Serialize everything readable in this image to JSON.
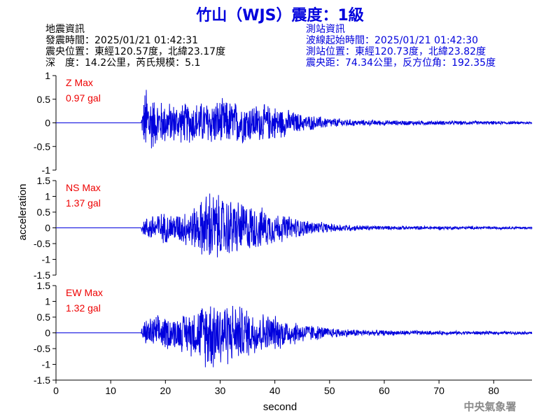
{
  "title": "竹山（WJS）震度：1級",
  "quake_info": {
    "heading": "地震資訊",
    "origin_time": "發震時間：2025/01/21 01:42:31",
    "epicenter": "震央位置：東經120.57度，北緯23.17度",
    "depth_magnitude": "深　度：14.2公里，芮氏規模：5.1"
  },
  "station_info": {
    "heading": "測站資訊",
    "wave_start": "波線起始時間：2025/01/21 01:42:30",
    "station_location": "測站位置：東經120.73度，北緯23.82度",
    "distance_azimuth": "震央距：74.34公里，反方位角：192.35度"
  },
  "watermark": "中央氣象署",
  "colors": {
    "trace": "#0000dd",
    "max_label": "#ee0000",
    "axis": "#000000",
    "header_right": "#0000dd"
  },
  "chart_data": {
    "type": "line",
    "xlabel": "second",
    "ylabel": "acceleration",
    "xlim": [
      0,
      87
    ],
    "xticks": [
      0,
      10,
      20,
      30,
      40,
      50,
      60,
      70,
      80
    ],
    "grid": false,
    "panels": [
      {
        "component": "Z",
        "max_label": "Z Max",
        "max_value": "0.97 gal",
        "ylim": [
          -1,
          1
        ],
        "yticks": [
          -1,
          -0.5,
          0,
          0.5,
          1
        ],
        "envelope": [
          [
            0,
            0
          ],
          [
            15.5,
            0.02
          ],
          [
            16,
            0.5
          ],
          [
            16.5,
            0.97
          ],
          [
            18,
            0.55
          ],
          [
            22,
            0.45
          ],
          [
            27,
            0.5
          ],
          [
            30,
            0.55
          ],
          [
            33,
            0.5
          ],
          [
            36,
            0.45
          ],
          [
            40,
            0.4
          ],
          [
            45,
            0.2
          ],
          [
            50,
            0.12
          ],
          [
            55,
            0.07
          ],
          [
            60,
            0.06
          ],
          [
            70,
            0.05
          ],
          [
            80,
            0.04
          ],
          [
            87,
            0.03
          ]
        ]
      },
      {
        "component": "NS",
        "max_label": "NS Max",
        "max_value": "1.37 gal",
        "ylim": [
          -1.5,
          1.5
        ],
        "yticks": [
          -1.5,
          -1,
          -0.5,
          0,
          0.5,
          1,
          1.5
        ],
        "envelope": [
          [
            0,
            0
          ],
          [
            15.5,
            0.02
          ],
          [
            16,
            0.3
          ],
          [
            18,
            0.55
          ],
          [
            22,
            0.5
          ],
          [
            26,
            0.8
          ],
          [
            27,
            1.1
          ],
          [
            28,
            1.37
          ],
          [
            30,
            1.1
          ],
          [
            33,
            1.0
          ],
          [
            36,
            0.8
          ],
          [
            40,
            0.55
          ],
          [
            45,
            0.3
          ],
          [
            50,
            0.15
          ],
          [
            55,
            0.1
          ],
          [
            60,
            0.07
          ],
          [
            70,
            0.06
          ],
          [
            80,
            0.05
          ],
          [
            87,
            0.04
          ]
        ]
      },
      {
        "component": "EW",
        "max_label": "EW Max",
        "max_value": "1.32 gal",
        "ylim": [
          -1.5,
          1.5
        ],
        "yticks": [
          -1.5,
          -1,
          -0.5,
          0,
          0.5,
          1,
          1.5
        ],
        "envelope": [
          [
            0,
            0
          ],
          [
            15.5,
            0.02
          ],
          [
            16,
            0.4
          ],
          [
            18,
            0.6
          ],
          [
            22,
            0.55
          ],
          [
            26,
            0.9
          ],
          [
            28,
            1.32
          ],
          [
            30,
            1.2
          ],
          [
            33,
            1.0
          ],
          [
            36,
            0.8
          ],
          [
            40,
            0.6
          ],
          [
            45,
            0.35
          ],
          [
            50,
            0.18
          ],
          [
            55,
            0.12
          ],
          [
            60,
            0.09
          ],
          [
            70,
            0.07
          ],
          [
            80,
            0.06
          ],
          [
            87,
            0.05
          ]
        ]
      }
    ]
  }
}
